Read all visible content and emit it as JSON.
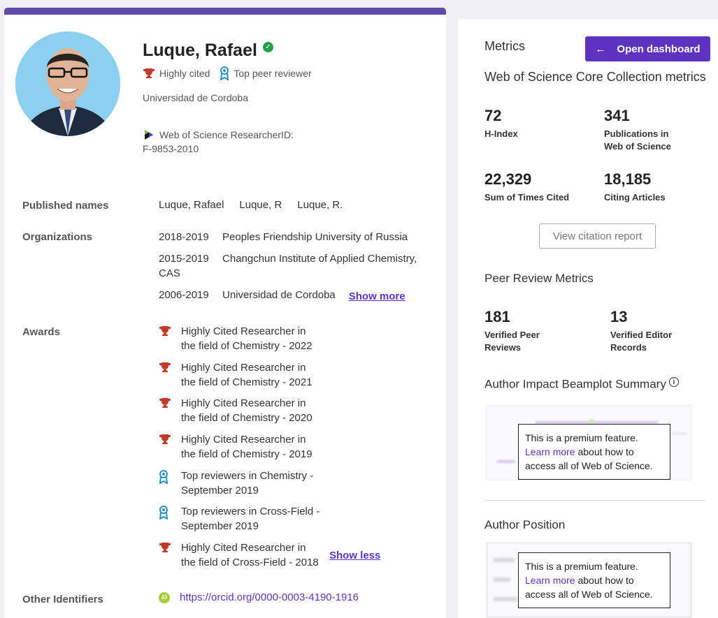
{
  "profile": {
    "name": "Luque, Rafael",
    "badges": [
      "Highly cited",
      "Top peer reviewer"
    ],
    "organization": "Universidad de Cordoba",
    "researcher_id_label": "Web of Science ResearcherID:",
    "researcher_id": "F-9853-2010"
  },
  "details": {
    "published_names_label": "Published names",
    "published_names": [
      "Luque, Rafael",
      "Luque, R",
      "Luque, R."
    ],
    "organizations_label": "Organizations",
    "organizations": [
      {
        "years": "2018-2019",
        "name": "Peoples Friendship University of Russia"
      },
      {
        "years": "2015-2019",
        "name": "Changchun Institute of Applied Chemistry, CAS"
      },
      {
        "years": "2006-2019",
        "name": "Universidad de Cordoba"
      }
    ],
    "show_more": "Show more",
    "awards_label": "Awards",
    "awards": [
      {
        "icon": "trophy-icon",
        "text": "Highly Cited Researcher in the field of Chemistry - 2022"
      },
      {
        "icon": "trophy-icon",
        "text": "Highly Cited Researcher in the field of Chemistry - 2021"
      },
      {
        "icon": "trophy-icon",
        "text": "Highly Cited Researcher in the field of Chemistry - 2020"
      },
      {
        "icon": "trophy-icon",
        "text": "Highly Cited Researcher in the field of Chemistry - 2019"
      },
      {
        "icon": "reviewer-ribbon-icon",
        "text": "Top reviewers in Chemistry - September 2019"
      },
      {
        "icon": "reviewer-ribbon-icon",
        "text": "Top reviewers in Cross-Field - September 2019"
      },
      {
        "icon": "trophy-icon",
        "text": "Highly Cited Researcher in the field of Cross-Field - 2018"
      }
    ],
    "show_less": "Show less",
    "other_identifiers_label": "Other Identifiers",
    "orcid_url": "https://orcid.org/0000-0003-4190-1916"
  },
  "metrics": {
    "title": "Metrics",
    "open_dashboard": "Open dashboard",
    "core_title": "Web of Science Core Collection metrics",
    "h_index": "72",
    "h_index_label": "H-Index",
    "publications": "341",
    "publications_label": "Publications in Web of Science",
    "times_cited": "22,329",
    "times_cited_label": "Sum of Times Cited",
    "citing_articles": "18,185",
    "citing_articles_label": "Citing Articles",
    "view_citation_report": "View citation report",
    "peer_title": "Peer Review Metrics",
    "verified_peer": "181",
    "verified_peer_label": "Verified Peer Reviews",
    "verified_editor": "13",
    "verified_editor_label": "Verified Editor Records",
    "beamplot_title": "Author Impact Beamplot Summary",
    "premium_line1": "This is a premium feature.",
    "learn_more": "Learn more",
    "premium_rest": " about how to access all of Web of Science.",
    "author_position_title": "Author Position"
  },
  "colors": {
    "accent": "#5e33bf",
    "header_bar": "#5e4ba8",
    "trophy": "#c0392b",
    "ribbon": "#2a8fbf",
    "orcid": "#a6ce39"
  }
}
